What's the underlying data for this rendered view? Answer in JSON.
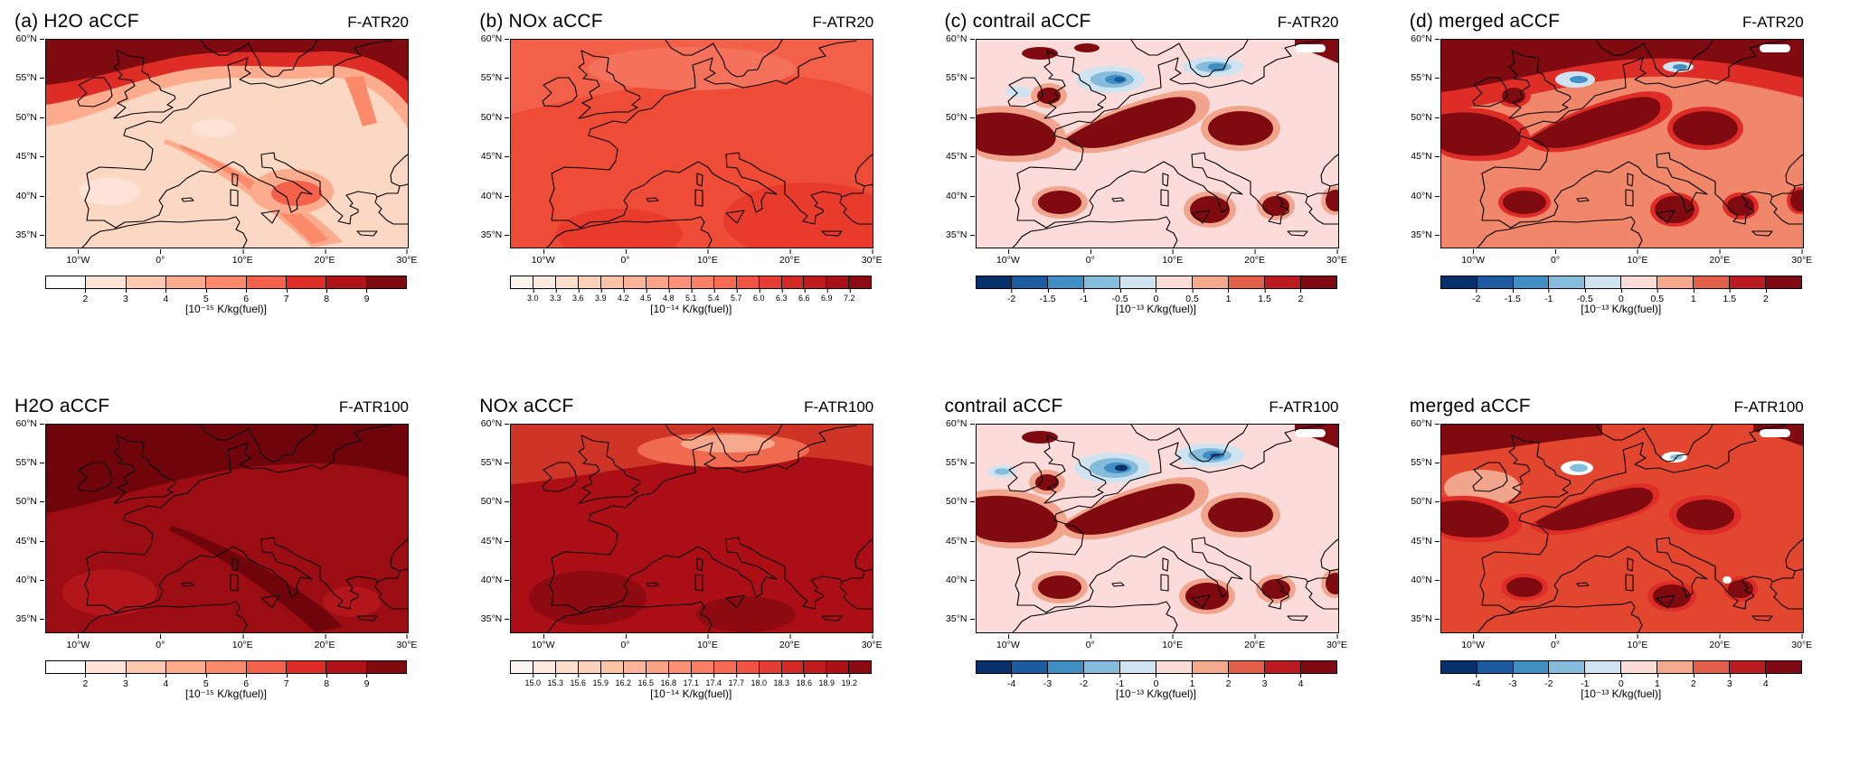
{
  "axes": {
    "lat_ticks": [
      "60°N",
      "55°N",
      "50°N",
      "45°N",
      "40°N",
      "35°N"
    ],
    "lon_ticks": [
      "10°W",
      "0°",
      "10°E",
      "20°E",
      "30°E"
    ]
  },
  "panels": [
    {
      "id": "h2o-atr20",
      "title": "(a) H2O aCCF",
      "tag": "F-ATR20",
      "map_base": "#fbd8c3",
      "colorbar": {
        "colors": [
          "#ffffff",
          "#fee3d6",
          "#fcc8b0",
          "#fcab8c",
          "#fb8a6a",
          "#f4624b",
          "#de2d26",
          "#b01217",
          "#7f0a10"
        ],
        "ticks": [
          "2",
          "3",
          "4",
          "5",
          "6",
          "7",
          "8",
          "9"
        ],
        "unit": "[10⁻¹⁵ K/kg(fuel)]"
      }
    },
    {
      "id": "nox-atr20",
      "title": "(b) NOx aCCF",
      "tag": "F-ATR20",
      "map_base": "#ee4c37",
      "colorbar": {
        "colors": [
          "#fff5f0",
          "#ffe9dd",
          "#fedecb",
          "#fdd1b9",
          "#fcc3a7",
          "#fcb398",
          "#fca287",
          "#fc9176",
          "#fb7f64",
          "#f96a52",
          "#f15443",
          "#e43d33",
          "#d32a24",
          "#c01a1d",
          "#a91018",
          "#8c0a12"
        ],
        "ticks": [
          "3.0",
          "3.3",
          "3.6",
          "3.9",
          "4.2",
          "4.5",
          "4.8",
          "5.1",
          "5.4",
          "5.7",
          "6.0",
          "6.3",
          "6.6",
          "6.9",
          "7.2"
        ],
        "unit": "[10⁻¹⁴ K/kg(fuel)]"
      }
    },
    {
      "id": "contrail-atr20",
      "title": "(c) contrail aCCF",
      "tag": "F-ATR20",
      "map_base": "#fbdcda",
      "colorbar": {
        "colors": [
          "#08306b",
          "#1c5ba0",
          "#3f8ec4",
          "#85bcdc",
          "#cfe3f0",
          "#fbdcd6",
          "#f5a98c",
          "#e2604a",
          "#bb1a20",
          "#7f0a14"
        ],
        "ticks": [
          "-2",
          "-1.5",
          "-1",
          "-0.5",
          "0",
          "0.5",
          "1",
          "1.5",
          "2"
        ],
        "unit": "[10⁻¹³ K/kg(fuel)]"
      }
    },
    {
      "id": "merged-atr20",
      "title": "(d) merged aCCF",
      "tag": "F-ATR20",
      "map_base": "#f0876b",
      "colorbar": {
        "colors": [
          "#08306b",
          "#1c5ba0",
          "#3f8ec4",
          "#85bcdc",
          "#cfe3f0",
          "#fbdcd6",
          "#f5a98c",
          "#e2604a",
          "#bb1a20",
          "#7f0a14"
        ],
        "ticks": [
          "-2",
          "-1.5",
          "-1",
          "-0.5",
          "0",
          "0.5",
          "1",
          "1.5",
          "2"
        ],
        "unit": "[10⁻¹³ K/kg(fuel)]"
      }
    },
    {
      "id": "h2o-atr100",
      "title": "H2O aCCF",
      "tag": "F-ATR100",
      "map_base": "#9c0d13",
      "colorbar": {
        "colors": [
          "#ffffff",
          "#fee3d6",
          "#fcc8b0",
          "#fcab8c",
          "#fb8a6a",
          "#f4624b",
          "#de2d26",
          "#b01217",
          "#7f0a10"
        ],
        "ticks": [
          "2",
          "3",
          "4",
          "5",
          "6",
          "7",
          "8",
          "9"
        ],
        "unit": "[10⁻¹⁵ K/kg(fuel)]"
      }
    },
    {
      "id": "nox-atr100",
      "title": "NOx aCCF",
      "tag": "F-ATR100",
      "map_base": "#ab0f15",
      "colorbar": {
        "colors": [
          "#fff5f0",
          "#ffe9dd",
          "#fedecb",
          "#fdd1b9",
          "#fcc3a7",
          "#fcb398",
          "#fca287",
          "#fc9176",
          "#fb7f64",
          "#f96a52",
          "#f15443",
          "#e43d33",
          "#d32a24",
          "#c01a1d",
          "#a91018",
          "#8c0a12"
        ],
        "ticks": [
          "15.0",
          "15.3",
          "15.6",
          "15.9",
          "16.2",
          "16.5",
          "16.8",
          "17.1",
          "17.4",
          "17.7",
          "18.0",
          "18.3",
          "18.6",
          "18.9",
          "19.2"
        ],
        "unit": "[10⁻¹⁴ K/kg(fuel)]"
      }
    },
    {
      "id": "contrail-atr100",
      "title": "contrail aCCF",
      "tag": "F-ATR100",
      "map_base": "#fbdcda",
      "colorbar": {
        "colors": [
          "#08306b",
          "#1c5ba0",
          "#3f8ec4",
          "#85bcdc",
          "#cfe3f0",
          "#fbdcd6",
          "#f5a98c",
          "#e2604a",
          "#bb1a20",
          "#7f0a14"
        ],
        "ticks": [
          "-4",
          "-3",
          "-2",
          "-1",
          "0",
          "1",
          "2",
          "3",
          "4"
        ],
        "unit": "[10⁻¹³ K/kg(fuel)]"
      }
    },
    {
      "id": "merged-atr100",
      "title": "merged aCCF",
      "tag": "F-ATR100",
      "map_base": "#e2462f",
      "colorbar": {
        "colors": [
          "#08306b",
          "#1c5ba0",
          "#3f8ec4",
          "#85bcdc",
          "#cfe3f0",
          "#fbdcd6",
          "#f5a98c",
          "#e2604a",
          "#bb1a20",
          "#7f0a14"
        ],
        "ticks": [
          "-4",
          "-3",
          "-2",
          "-1",
          "0",
          "1",
          "2",
          "3",
          "4"
        ],
        "unit": "[10⁻¹³ K/kg(fuel)]"
      }
    }
  ],
  "chart_data": [
    {
      "type": "heatmap",
      "panel": "(a)",
      "variable": "H2O aCCF",
      "metric": "F-ATR20",
      "units": "10⁻¹⁵ K/kg(fuel)",
      "lon_ticks": [
        "10°W",
        "0°",
        "10°E",
        "20°E",
        "30°E"
      ],
      "lat_ticks": [
        "35°N",
        "40°N",
        "45°N",
        "50°N",
        "55°N",
        "60°N"
      ],
      "colorbar_levels": [
        2,
        3,
        4,
        5,
        6,
        7,
        8,
        9
      ],
      "palette": "white-to-darkred (Reds)",
      "pattern": "background 2–4 over most of Europe; strong zonal maximum 7–9+ along 55–60°N (darkest in the northwest corner); secondary ridge 5–6 running southeast from central Europe across Italy toward the eastern Mediterranean"
    },
    {
      "type": "heatmap",
      "panel": "(b)",
      "variable": "NOx aCCF",
      "metric": "F-ATR20",
      "units": "10⁻¹⁴ K/kg(fuel)",
      "lon_ticks": [
        "10°W",
        "0°",
        "10°E",
        "20°E",
        "30°E"
      ],
      "lat_ticks": [
        "35°N",
        "40°N",
        "45°N",
        "50°N",
        "55°N",
        "60°N"
      ],
      "colorbar_levels": [
        3.0,
        3.3,
        3.6,
        3.9,
        4.2,
        4.5,
        4.8,
        5.1,
        5.4,
        5.7,
        6.0,
        6.3,
        6.6,
        6.9,
        7.2
      ],
      "palette": "white-to-darkred (Reds)",
      "pattern": "nearly uniform field ≈5.4–6.0 over the whole domain, slightly lower (≈5.1) in the far northwest and slightly higher toward the south"
    },
    {
      "type": "heatmap",
      "panel": "(c)",
      "variable": "contrail aCCF",
      "metric": "F-ATR20",
      "units": "10⁻¹³ K/kg(fuel)",
      "lon_ticks": [
        "10°W",
        "0°",
        "10°E",
        "20°E",
        "30°E"
      ],
      "lat_ticks": [
        "35°N",
        "40°N",
        "45°N",
        "50°N",
        "55°N",
        "60°N"
      ],
      "colorbar_levels": [
        -2,
        -1.5,
        -1,
        -0.5,
        0,
        0.5,
        1,
        1.5,
        2
      ],
      "palette": "diverging blue-white-red",
      "pattern": "mostly near 0 (±0.25); strong positive cells >2 over the eastern Atlantic at 45–50°N, a France–Germany band, the Balkans, central Spain, southern Italy/Sicily and Greece; negative cells to −2 over the North Sea and Baltic around 53–57°N; dark positive patch at the top-right corner"
    },
    {
      "type": "heatmap",
      "panel": "(d)",
      "variable": "merged aCCF",
      "metric": "F-ATR20",
      "units": "10⁻¹³ K/kg(fuel)",
      "lon_ticks": [
        "10°W",
        "0°",
        "10°E",
        "20°E",
        "30°E"
      ],
      "lat_ticks": [
        "35°N",
        "40°N",
        "45°N",
        "50°N",
        "55°N",
        "60°N"
      ],
      "colorbar_levels": [
        -2,
        -1.5,
        -1,
        -0.5,
        0,
        0.5,
        1,
        1.5,
        2
      ],
      "palette": "diverging blue-white-red",
      "pattern": "positive background ≈0.5–1 everywhere; >2 along a 55–60°N band and in the contrail hot spots (Atlantic 45–50°N, central Europe, Balkans, Spain, southern Italy, Greece); weak negative patches remain over the North Sea and Baltic"
    },
    {
      "type": "heatmap",
      "panel": "(a) bottom",
      "variable": "H2O aCCF",
      "metric": "F-ATR100",
      "units": "10⁻¹⁵ K/kg(fuel)",
      "lon_ticks": [
        "10°W",
        "0°",
        "10°E",
        "20°E",
        "30°E"
      ],
      "lat_ticks": [
        "35°N",
        "40°N",
        "45°N",
        "50°N",
        "55°N",
        "60°N"
      ],
      "colorbar_levels": [
        2,
        3,
        4,
        5,
        6,
        7,
        8,
        9
      ],
      "palette": "white-to-darkred (Reds)",
      "pattern": "values ≥8 nearly everywhere; darkest (≥9) over the northern half and along a ridge toward the southeast; slightly lower (≈7–8) over southwest Iberia and near Greece"
    },
    {
      "type": "heatmap",
      "panel": "(b) bottom",
      "variable": "NOx aCCF",
      "metric": "F-ATR100",
      "units": "10⁻¹⁴ K/kg(fuel)",
      "lon_ticks": [
        "10°W",
        "0°",
        "10°E",
        "20°E",
        "30°E"
      ],
      "lat_ticks": [
        "35°N",
        "40°N",
        "45°N",
        "50°N",
        "55°N",
        "60°N"
      ],
      "colorbar_levels": [
        15.0,
        15.3,
        15.6,
        15.9,
        16.2,
        16.5,
        16.8,
        17.1,
        17.4,
        17.7,
        18.0,
        18.3,
        18.6,
        18.9,
        19.2
      ],
      "palette": "white-to-darkred (Reds)",
      "pattern": "≈18–19 over most of the domain with maximum over Iberia and the south; decreasing to ≈15–16 toward southern Scandinavia and the Baltic in the north"
    },
    {
      "type": "heatmap",
      "panel": "(c) bottom",
      "variable": "contrail aCCF",
      "metric": "F-ATR100",
      "units": "10⁻¹³ K/kg(fuel)",
      "lon_ticks": [
        "10°W",
        "0°",
        "10°E",
        "20°E",
        "30°E"
      ],
      "lat_ticks": [
        "35°N",
        "40°N",
        "45°N",
        "50°N",
        "55°N",
        "60°N"
      ],
      "colorbar_levels": [
        -4,
        -3,
        -2,
        -1,
        0,
        1,
        2,
        3,
        4
      ],
      "palette": "diverging blue-white-red",
      "pattern": "same spatial pattern as F-ATR20 but scaled: positive cells >4 over the eastern Atlantic 45–50°N, central Europe, Balkans, Spain, southern Italy and Greece; negative cells to −4 over the North Sea and Baltic"
    },
    {
      "type": "heatmap",
      "panel": "(d) bottom",
      "variable": "merged aCCF",
      "metric": "F-ATR100",
      "units": "10⁻¹³ K/kg(fuel)",
      "lon_ticks": [
        "10°W",
        "0°",
        "10°E",
        "20°E",
        "30°E"
      ],
      "lat_ticks": [
        "35°N",
        "40°N",
        "45°N",
        "50°N",
        "55°N",
        "60°N"
      ],
      "colorbar_levels": [
        -4,
        -3,
        -2,
        -1,
        0,
        1,
        2,
        3,
        4
      ],
      "palette": "diverging blue-white-red",
      "pattern": "positive background ≈1–2 everywhere; >4 in the contrail hot spots (Balkans, southern Italy, Spain, central Europe, top corners); only small near-zero/light-blue remnants over the North Sea and Baltic"
    }
  ]
}
